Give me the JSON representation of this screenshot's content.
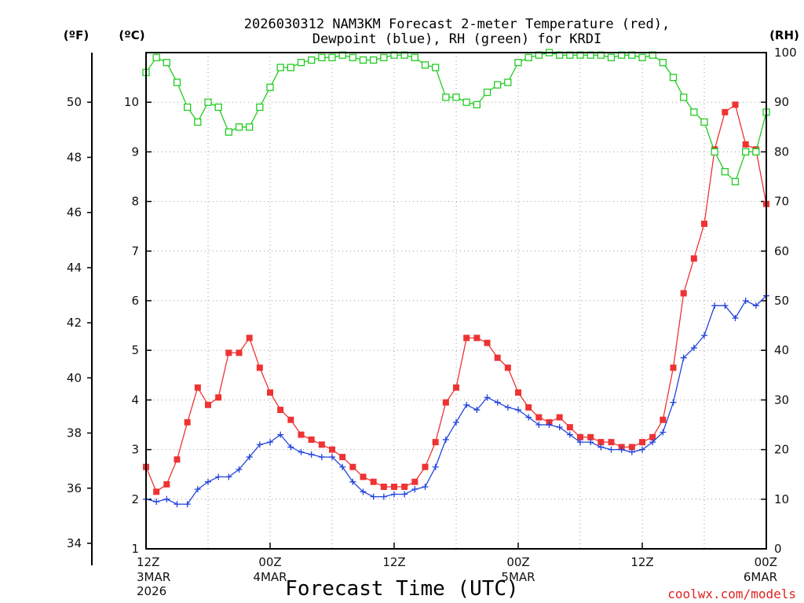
{
  "colors": {
    "temp": "#ee3333",
    "dewpoint": "#2244dd",
    "rh": "#22cc22",
    "credit": "#dd2222",
    "grid": "#999999"
  },
  "chart_data": {
    "type": "line",
    "title_line1": "2026030312 NAM3KM Forecast 2-meter Temperature (red),",
    "title_line2": "Dewpoint (blue), RH (green) for KRDI",
    "xlabel": "Forecast Time (UTC)",
    "units": {
      "f": "(ºF)",
      "c": "(ºC)",
      "rh": "(RH)"
    },
    "xlim": [
      0,
      60
    ],
    "c_range": [
      1,
      11
    ],
    "rh_range": [
      0,
      100
    ],
    "c_ticks": [
      1,
      2,
      3,
      4,
      5,
      6,
      7,
      8,
      9,
      10
    ],
    "f_ticks": [
      34,
      36,
      38,
      40,
      42,
      44,
      46,
      48,
      50
    ],
    "rh_ticks": [
      0,
      10,
      20,
      30,
      40,
      50,
      60,
      70,
      80,
      90,
      100
    ],
    "x_ticks": [
      {
        "x": 0,
        "l1": "12Z",
        "l2": "3MAR",
        "l3": "2026"
      },
      {
        "x": 12,
        "l1": "00Z",
        "l2": "4MAR",
        "l3": ""
      },
      {
        "x": 24,
        "l1": "12Z",
        "l2": "",
        "l3": ""
      },
      {
        "x": 36,
        "l1": "00Z",
        "l2": "5MAR",
        "l3": ""
      },
      {
        "x": 48,
        "l1": "12Z",
        "l2": "",
        "l3": ""
      },
      {
        "x": 60,
        "l1": "00Z",
        "l2": "6MAR",
        "l3": ""
      }
    ],
    "hours": [
      0,
      1,
      2,
      3,
      4,
      5,
      6,
      7,
      8,
      9,
      10,
      11,
      12,
      13,
      14,
      15,
      16,
      17,
      18,
      19,
      20,
      21,
      22,
      23,
      24,
      25,
      26,
      27,
      28,
      29,
      30,
      31,
      32,
      33,
      34,
      35,
      36,
      37,
      38,
      39,
      40,
      41,
      42,
      43,
      44,
      45,
      46,
      47,
      48,
      49,
      50,
      51,
      52,
      53,
      54,
      55,
      56,
      57,
      58,
      59,
      60
    ],
    "series": [
      {
        "name": "Temperature (C)",
        "axis": "c",
        "marker": "square",
        "values": [
          2.65,
          2.15,
          2.3,
          2.8,
          3.55,
          4.25,
          3.9,
          4.05,
          4.95,
          4.95,
          5.25,
          4.65,
          4.15,
          3.8,
          3.6,
          3.3,
          3.2,
          3.1,
          3.0,
          2.85,
          2.65,
          2.45,
          2.35,
          2.25,
          2.25,
          2.25,
          2.35,
          2.65,
          3.15,
          3.95,
          4.25,
          5.25,
          5.25,
          5.15,
          4.85,
          4.65,
          4.15,
          3.85,
          3.65,
          3.55,
          3.65,
          3.45,
          3.25,
          3.25,
          3.15,
          3.15,
          3.05,
          3.05,
          3.15,
          3.25,
          3.6,
          4.65,
          6.15,
          6.85,
          7.55,
          9.05,
          9.8,
          9.95,
          9.15,
          9.05,
          7.95
        ]
      },
      {
        "name": "Dewpoint (C)",
        "axis": "c",
        "marker": "plus",
        "values": [
          2.0,
          1.95,
          2.0,
          1.9,
          1.9,
          2.2,
          2.35,
          2.45,
          2.45,
          2.6,
          2.85,
          3.1,
          3.15,
          3.3,
          3.05,
          2.95,
          2.9,
          2.85,
          2.85,
          2.65,
          2.35,
          2.15,
          2.05,
          2.05,
          2.1,
          2.1,
          2.2,
          2.25,
          2.65,
          3.2,
          3.55,
          3.9,
          3.8,
          4.05,
          3.95,
          3.85,
          3.8,
          3.65,
          3.5,
          3.5,
          3.45,
          3.3,
          3.15,
          3.15,
          3.05,
          3.0,
          3.0,
          2.95,
          3.0,
          3.15,
          3.35,
          3.95,
          4.85,
          5.05,
          5.3,
          5.9,
          5.9,
          5.65,
          6.0,
          5.9,
          6.1
        ]
      },
      {
        "name": "RH (%)",
        "axis": "rh",
        "marker": "open-square",
        "values": [
          96,
          99,
          98,
          94,
          89,
          86,
          90,
          89,
          84,
          85,
          85,
          89,
          93,
          97,
          97,
          98,
          98.5,
          99,
          99,
          99.5,
          99,
          98.5,
          98.5,
          99,
          99.5,
          99.5,
          99,
          97.5,
          97,
          91,
          91,
          90,
          89.5,
          92,
          93.5,
          94,
          98,
          99,
          99.5,
          100,
          99.5,
          99.5,
          99.5,
          99.5,
          99.5,
          99,
          99.5,
          99.5,
          99,
          99.5,
          98,
          95,
          91,
          88,
          86,
          80,
          76,
          74,
          80,
          80,
          88
        ]
      }
    ]
  },
  "footer": {
    "credit": "coolwx.com/models"
  }
}
